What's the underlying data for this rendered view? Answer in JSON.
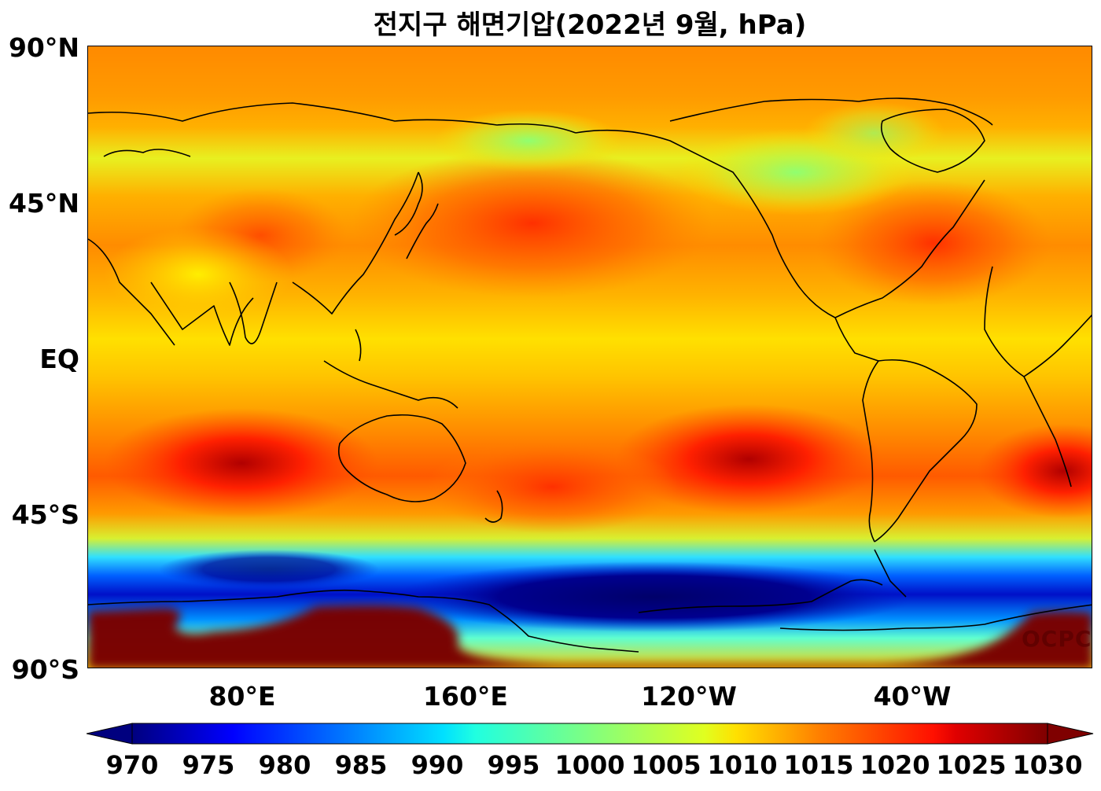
{
  "title": "전지구 해면기압(2022년 9월, hPa)",
  "watermark": "OCPC",
  "axes": {
    "y_ticks": [
      "90°N",
      "45°N",
      "EQ",
      "45°S",
      "90°S"
    ],
    "x_ticks": [
      "80°E",
      "160°E",
      "120°W",
      "40°W"
    ]
  },
  "colorbar": {
    "min": 970,
    "max": 1030,
    "ticks": [
      "970",
      "975",
      "980",
      "985",
      "990",
      "995",
      "1000",
      "1005",
      "1010",
      "1015",
      "1020",
      "1025",
      "1030"
    ],
    "extend": "both",
    "colormap": "jet"
  },
  "colors": {
    "coastline": "#000000",
    "low_pressure": "#00007f",
    "high_pressure": "#7f0000"
  }
}
